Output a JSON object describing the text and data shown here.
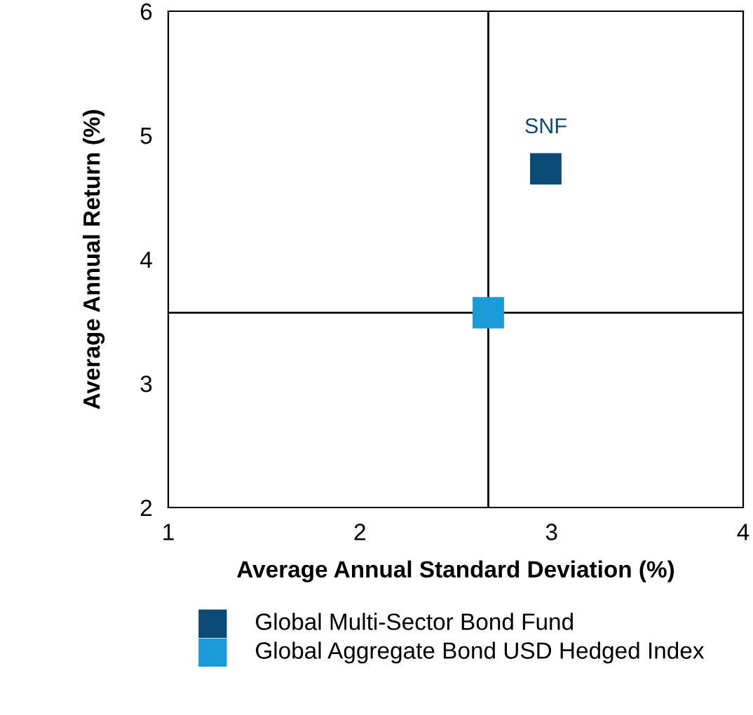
{
  "chart_data": {
    "type": "scatter",
    "xlabel": "Average Annual Standard Deviation (%)",
    "ylabel": "Average Annual Return (%)",
    "series": [
      {
        "name": "Global Multi-Sector Bond Fund",
        "color": "#0b4a75",
        "x": [
          2.97
        ],
        "values": [
          4.73
        ]
      },
      {
        "name": "Global Aggregate Bond USD Hedged Index",
        "color": "#1a9ad6",
        "x": [
          2.67
        ],
        "values": [
          3.57
        ]
      }
    ],
    "annotations": [
      {
        "text": "SNF",
        "x": 2.97,
        "y": 4.73
      }
    ],
    "ref_lines": [
      {
        "axis": "x",
        "value": 2.67,
        "color": "#000000"
      },
      {
        "axis": "y",
        "value": 3.57,
        "color": "#000000"
      }
    ],
    "xlim": [
      1,
      4
    ],
    "ylim": [
      2,
      6
    ],
    "xticks": [
      1,
      2,
      3,
      4
    ],
    "yticks": [
      2,
      3,
      4,
      5,
      6
    ],
    "marker": "square",
    "grid": false,
    "legend": "bottom"
  }
}
